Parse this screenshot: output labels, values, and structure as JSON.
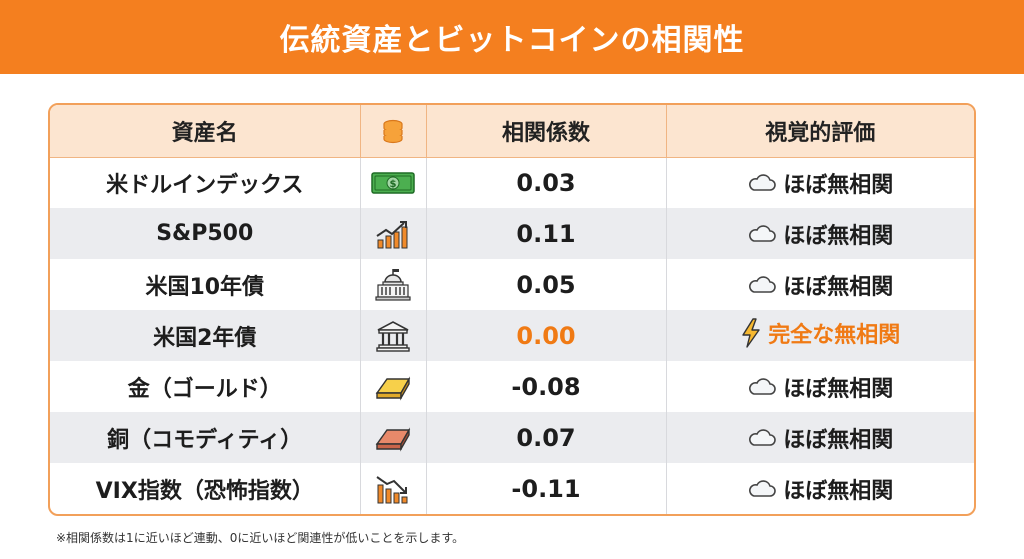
{
  "header": {
    "title": "伝統資産とビットコインの相関性"
  },
  "table": {
    "columns": {
      "asset": "資産名",
      "value": "相関係数",
      "evaluation": "視覚的評価"
    },
    "rows": [
      {
        "asset": "米ドルインデックス",
        "icon": "dollar-bill-icon",
        "value": "0.03",
        "evaluation": "ほぼ無相関",
        "eval_icon": "cloud-icon"
      },
      {
        "asset": "S&P500",
        "icon": "chart-up-icon",
        "value": "0.11",
        "evaluation": "ほぼ無相関",
        "eval_icon": "cloud-icon"
      },
      {
        "asset": "米国10年債",
        "icon": "capitol-icon",
        "value": "0.05",
        "evaluation": "ほぼ無相関",
        "eval_icon": "cloud-icon"
      },
      {
        "asset": "米国2年債",
        "icon": "bank-icon",
        "value": "0.00",
        "evaluation": "完全な無相関",
        "eval_icon": "lightning-icon"
      },
      {
        "asset": "金（ゴールド）",
        "icon": "gold-bar-icon",
        "value": "-0.08",
        "evaluation": "ほぼ無相関",
        "eval_icon": "cloud-icon"
      },
      {
        "asset": "銅（コモディティ）",
        "icon": "copper-bar-icon",
        "value": "0.07",
        "evaluation": "ほぼ無相関",
        "eval_icon": "cloud-icon"
      },
      {
        "asset": "VIX指数（恐怖指数）",
        "icon": "chart-down-icon",
        "value": "-0.11",
        "evaluation": "ほぼ無相関",
        "eval_icon": "cloud-icon"
      }
    ]
  },
  "footnote": "※相関係数は1に近いほど連動、0に近いほど関連性が低いことを示します。",
  "colors": {
    "accent": "#f47f1f",
    "highlight": "#f07a14",
    "header_bg": "#fce5d0"
  }
}
